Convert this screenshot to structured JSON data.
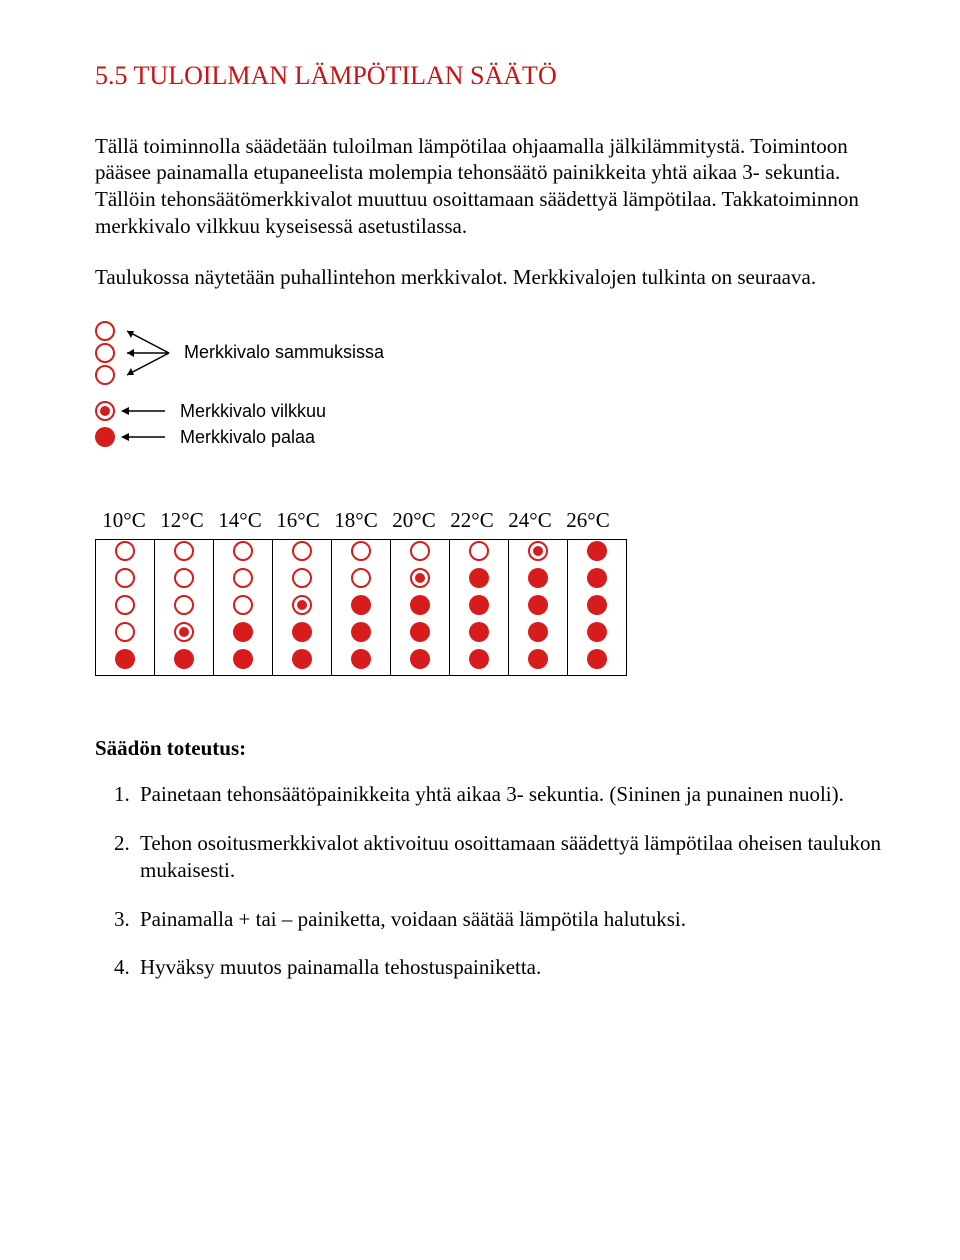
{
  "heading": "5.5 TULOILMAN LÄMPÖTILAN SÄÄTÖ",
  "para1": "Tällä toiminnolla säädetään tuloilman lämpötilaa ohjaamalla jälkilämmitystä. Toimintoon pääsee painamalla etupaneelista molempia tehonsäätö painikkeita yhtä aikaa 3- sekuntia. Tällöin tehonsäätömerkkivalot muuttuu osoittamaan säädettyä lämpötilaa. Takkatoiminnon merkkivalo vilkkuu kyseisessä asetustilassa.",
  "para2": "Taulukossa näytetään puhallintehon merkkivalot. Merkkivalojen tulkinta on seuraava.",
  "legend": {
    "off": "Merkkivalo sammuksissa",
    "blink": "Merkkivalo vilkkuu",
    "on": "Merkkivalo palaa"
  },
  "chart": {
    "headers": [
      "10°C",
      "12°C",
      "14°C",
      "16°C",
      "18°C",
      "20°C",
      "22°C",
      "24°C",
      "26°C"
    ],
    "grid": [
      [
        "off",
        "off",
        "off",
        "off",
        "off",
        "off",
        "off",
        "blink",
        "on"
      ],
      [
        "off",
        "off",
        "off",
        "off",
        "off",
        "blink",
        "on",
        "on",
        "on"
      ],
      [
        "off",
        "off",
        "off",
        "blink",
        "on",
        "on",
        "on",
        "on",
        "on"
      ],
      [
        "off",
        "blink",
        "on",
        "on",
        "on",
        "on",
        "on",
        "on",
        "on"
      ],
      [
        "on",
        "on",
        "on",
        "on",
        "on",
        "on",
        "on",
        "on",
        "on"
      ]
    ],
    "color_led": "#d61c1c",
    "color_border": "#000000"
  },
  "subheading": "Säädön toteutus:",
  "steps": [
    "Painetaan tehonsäätöpainikkeita yhtä aikaa 3- sekuntia. (Sininen ja punainen nuoli).",
    "Tehon osoitusmerkkivalot aktivoituu osoittamaan säädettyä lämpötilaa oheisen taulukon mukaisesti.",
    "Painamalla + tai – painiketta, voidaan säätää lämpötila halutuksi.",
    "Hyväksy muutos painamalla tehostuspainiketta."
  ]
}
